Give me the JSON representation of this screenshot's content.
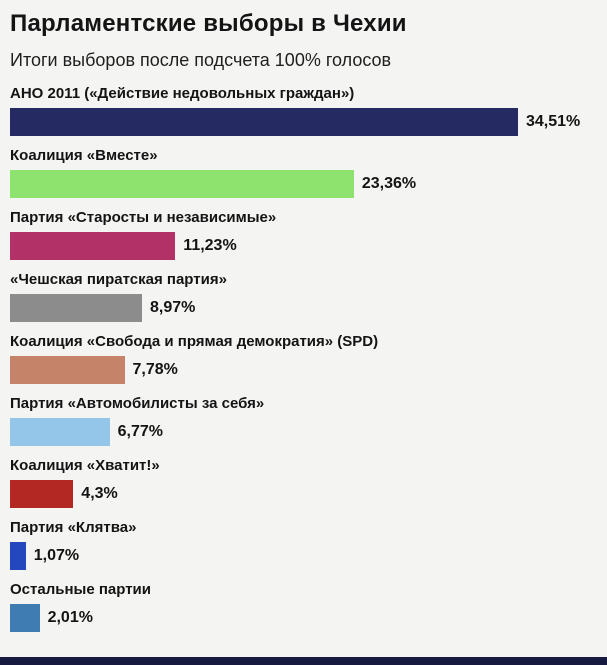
{
  "header": {
    "title": "Парламентские выборы в Чехии",
    "subtitle": "Итоги выборов после подсчета 100% голосов"
  },
  "chart_data": {
    "type": "bar",
    "orientation": "horizontal",
    "title": "Парламентские выборы в Чехии",
    "subtitle": "Итоги выборов после подсчета 100% голосов",
    "unit": "%",
    "xlim": [
      0,
      34.51
    ],
    "grid": false,
    "legend": "none",
    "categories": [
      "АНО 2011 («Действие недовольных граждан»)",
      "Коалиция «Вместе»",
      "Партия «Старосты и независимые»",
      "«Чешская пиратская партия»",
      "Коалиция «Свобода и прямая демократия» (SPD)",
      "Партия «Автомобилисты за себя»",
      "Коалиция «Хватит!»",
      "Партия «Клятва»",
      "Остальные партии"
    ],
    "values": [
      34.51,
      23.36,
      11.23,
      8.97,
      7.78,
      6.77,
      4.3,
      1.07,
      2.01
    ],
    "value_labels": [
      "34,51%",
      "23,36%",
      "11,23%",
      "8,97%",
      "7,78%",
      "6,77%",
      "4,3%",
      "1,07%",
      "2,01%"
    ],
    "bar_colors": [
      "#252a63",
      "#8ee36e",
      "#b23268",
      "#8c8c8c",
      "#c5846a",
      "#93c6e8",
      "#b32822",
      "#2347bd",
      "#3e7cb1"
    ]
  },
  "colors": {
    "background": "#f4f4f3",
    "text": "#141414",
    "footer_strip": "#161a3e"
  }
}
